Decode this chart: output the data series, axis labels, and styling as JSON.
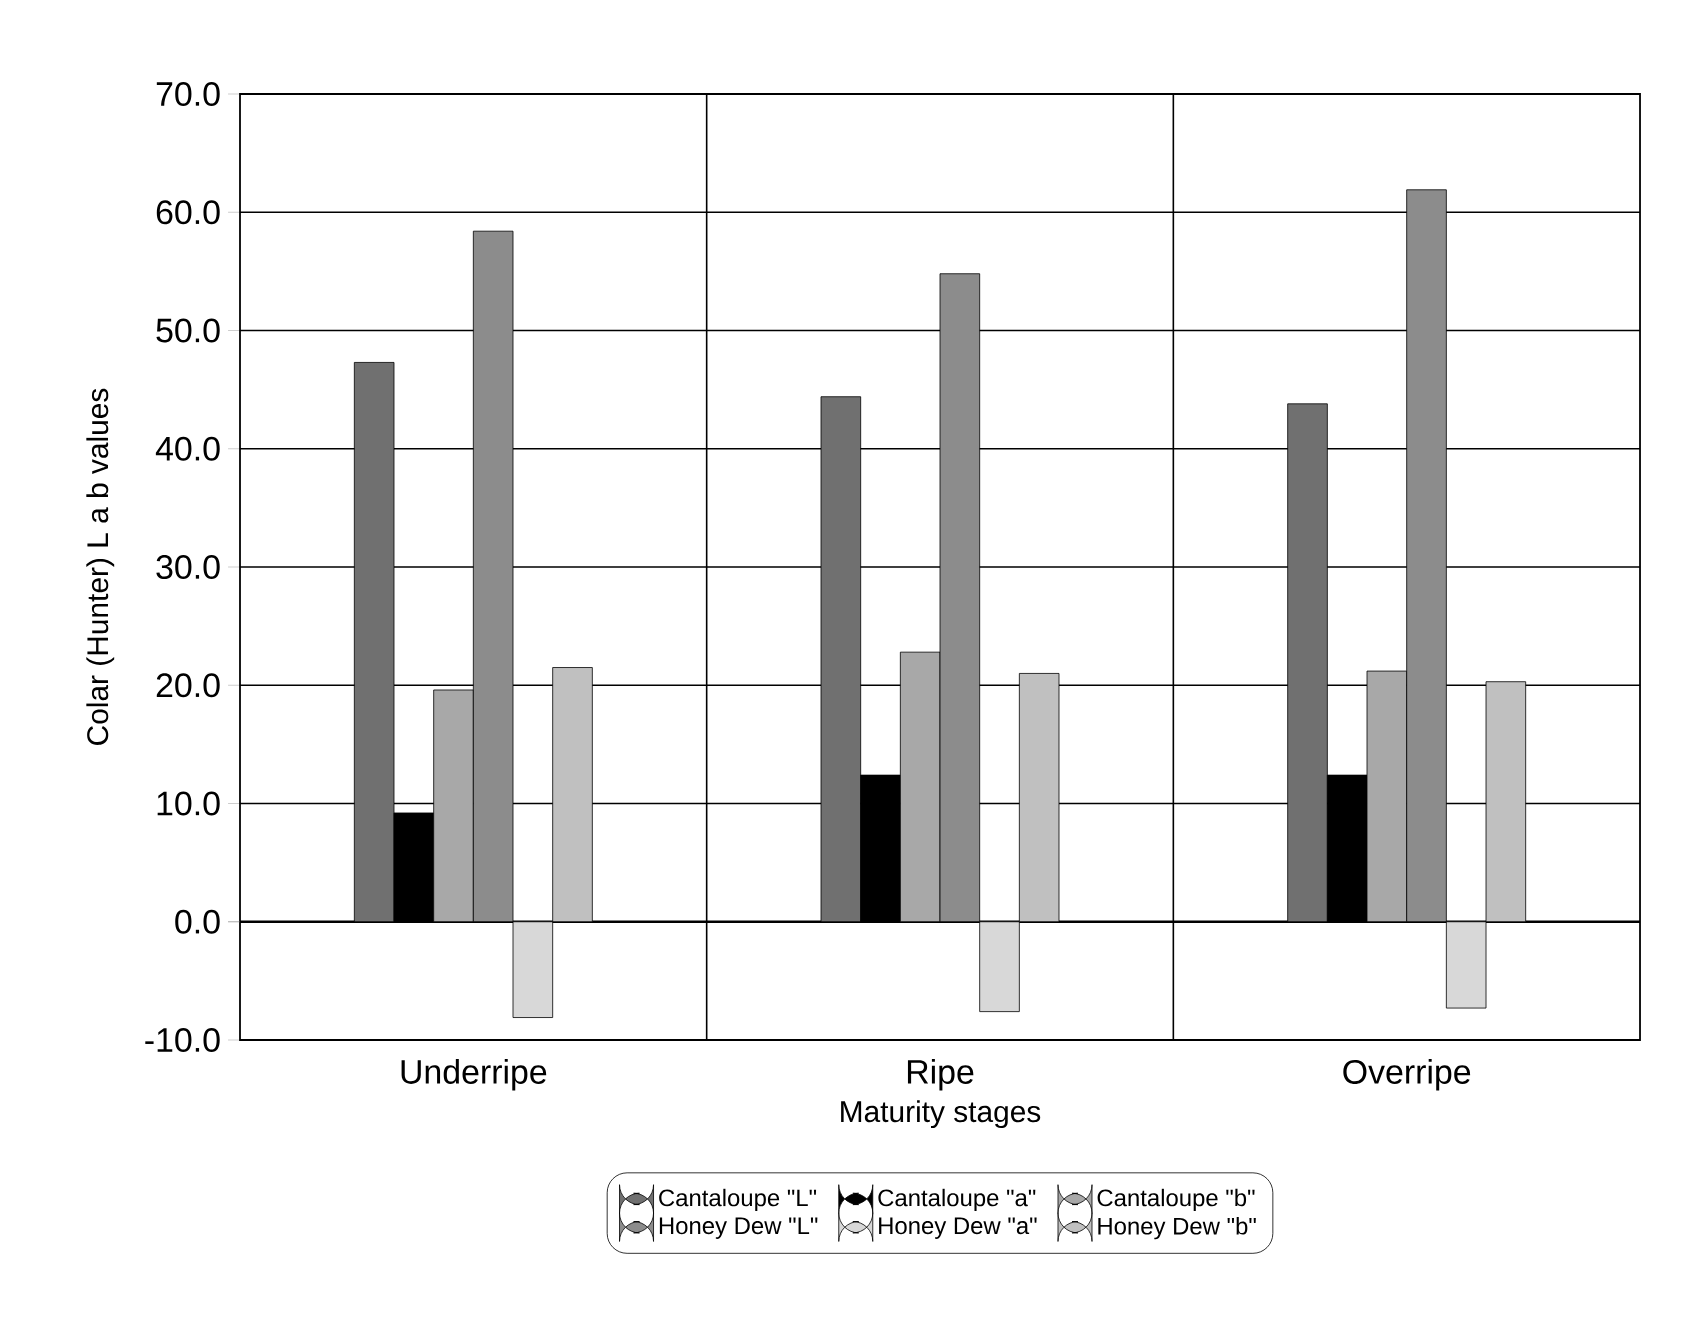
{
  "chart_data": {
    "type": "bar",
    "xlabel": "Maturity stages",
    "ylabel": "Colar (Hunter) L a b values",
    "categories": [
      "Underripe",
      "Ripe",
      "Overripe"
    ],
    "series": [
      {
        "name": "Cantaloupe \"L\"",
        "color": "#707070",
        "values": [
          47.3,
          44.4,
          43.8
        ]
      },
      {
        "name": "Cantaloupe \"a\"",
        "color": "#000000",
        "values": [
          9.2,
          12.4,
          12.4
        ]
      },
      {
        "name": "Cantaloupe \"b\"",
        "color": "#a8a8a8",
        "values": [
          19.6,
          22.8,
          21.2
        ]
      },
      {
        "name": "Honey Dew \"L\"",
        "color": "#8c8c8c",
        "values": [
          58.4,
          54.8,
          61.9
        ]
      },
      {
        "name": "Honey Dew \"a\"",
        "color": "#d8d8d8",
        "values": [
          -8.1,
          -7.6,
          -7.3
        ]
      },
      {
        "name": "Honey Dew \"b\"",
        "color": "#c0c0c0",
        "values": [
          21.5,
          21.0,
          20.3
        ]
      }
    ],
    "ylim": [
      -10,
      70
    ],
    "yticks": [
      {
        "value": -10,
        "label": "-10.0"
      },
      {
        "value": 0,
        "label": "0.0"
      },
      {
        "value": 10,
        "label": "10.0"
      },
      {
        "value": 20,
        "label": "20.0"
      },
      {
        "value": 30,
        "label": "30.0"
      },
      {
        "value": 40,
        "label": "40.0"
      },
      {
        "value": 50,
        "label": "50.0"
      },
      {
        "value": 60,
        "label": "60.0"
      },
      {
        "value": 70,
        "label": "70.0"
      }
    ],
    "grid": true,
    "legend": "bottom"
  }
}
